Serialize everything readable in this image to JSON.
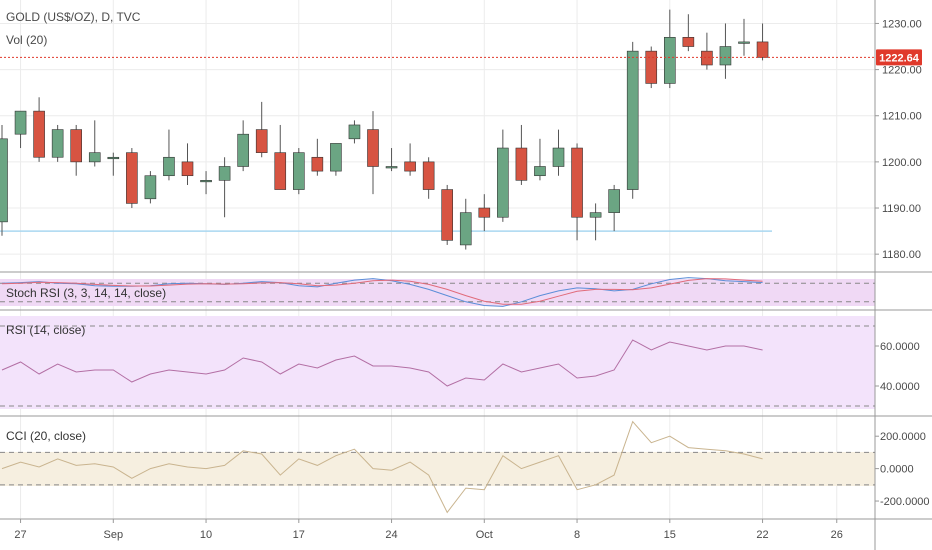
{
  "header": {
    "title": "GOLD (US$/OZ), D, TVC",
    "volume_label": "Vol (20)"
  },
  "current_price": "1222.64",
  "colors": {
    "up": "#6ba583",
    "down": "#d75442",
    "wick": "#555555",
    "current_line": "#e0392b",
    "support_line": "#a9d7f0",
    "stoch_band": "#f0d9f5",
    "rsi_band": "#f3e3fb",
    "rsi_line": "#b36fa4",
    "cci_band": "#f6efe0",
    "cci_line": "#c9b48f",
    "stoch_k": "#5b8ed8",
    "stoch_d": "#e06b7a"
  },
  "chart_data": [
    {
      "type": "candlestick",
      "title": "GOLD (US$/OZ), D, TVC",
      "x_tick_labels": [
        "27",
        "Sep",
        "10",
        "17",
        "24",
        "Oct",
        "8",
        "15",
        "22",
        "26"
      ],
      "y_ticks": [
        "1180.00",
        "1190.00",
        "1200.00",
        "1210.00",
        "1220.00",
        "1230.00"
      ],
      "ylim": [
        1177,
        1234
      ],
      "support_level": 1185,
      "current_price": 1222.64,
      "candles": [
        {
          "date": "Aug 24",
          "open": 1187,
          "high": 1208,
          "low": 1184,
          "close": 1205
        },
        {
          "date": "Aug 27",
          "open": 1206,
          "high": 1211,
          "low": 1203,
          "close": 1211
        },
        {
          "date": "Aug 28",
          "open": 1211,
          "high": 1214,
          "low": 1200,
          "close": 1201
        },
        {
          "date": "Aug 29",
          "open": 1201,
          "high": 1208,
          "low": 1200,
          "close": 1207
        },
        {
          "date": "Aug 30",
          "open": 1207,
          "high": 1208,
          "low": 1197,
          "close": 1200
        },
        {
          "date": "Aug 31",
          "open": 1200,
          "high": 1209,
          "low": 1199,
          "close": 1202
        },
        {
          "date": "Sep 3",
          "open": 1201,
          "high": 1202,
          "low": 1197,
          "close": 1201
        },
        {
          "date": "Sep 4",
          "open": 1202,
          "high": 1203,
          "low": 1190,
          "close": 1191
        },
        {
          "date": "Sep 5",
          "open": 1192,
          "high": 1198,
          "low": 1191,
          "close": 1197
        },
        {
          "date": "Sep 6",
          "open": 1197,
          "high": 1207,
          "low": 1196,
          "close": 1201
        },
        {
          "date": "Sep 7",
          "open": 1200,
          "high": 1204,
          "low": 1195,
          "close": 1197
        },
        {
          "date": "Sep 10",
          "open": 1196,
          "high": 1198,
          "low": 1193,
          "close": 1196
        },
        {
          "date": "Sep 11",
          "open": 1196,
          "high": 1201,
          "low": 1188,
          "close": 1199
        },
        {
          "date": "Sep 12",
          "open": 1199,
          "high": 1209,
          "low": 1198,
          "close": 1206
        },
        {
          "date": "Sep 13",
          "open": 1207,
          "high": 1213,
          "low": 1201,
          "close": 1202
        },
        {
          "date": "Sep 14",
          "open": 1202,
          "high": 1208,
          "low": 1194,
          "close": 1194
        },
        {
          "date": "Sep 17",
          "open": 1194,
          "high": 1203,
          "low": 1193,
          "close": 1202
        },
        {
          "date": "Sep 18",
          "open": 1201,
          "high": 1205,
          "low": 1197,
          "close": 1198
        },
        {
          "date": "Sep 19",
          "open": 1198,
          "high": 1204,
          "low": 1197,
          "close": 1204
        },
        {
          "date": "Sep 20",
          "open": 1205,
          "high": 1209,
          "low": 1204,
          "close": 1208
        },
        {
          "date": "Sep 21",
          "open": 1207,
          "high": 1211,
          "low": 1193,
          "close": 1199
        },
        {
          "date": "Sep 24",
          "open": 1199,
          "high": 1203,
          "low": 1198,
          "close": 1199
        },
        {
          "date": "Sep 25",
          "open": 1200,
          "high": 1204,
          "low": 1197,
          "close": 1198
        },
        {
          "date": "Sep 26",
          "open": 1200,
          "high": 1201,
          "low": 1192,
          "close": 1194
        },
        {
          "date": "Sep 27",
          "open": 1194,
          "high": 1195,
          "low": 1182,
          "close": 1183
        },
        {
          "date": "Sep 28",
          "open": 1182,
          "high": 1192,
          "low": 1181,
          "close": 1189
        },
        {
          "date": "Oct 1",
          "open": 1190,
          "high": 1193,
          "low": 1185,
          "close": 1188
        },
        {
          "date": "Oct 2",
          "open": 1188,
          "high": 1207,
          "low": 1187,
          "close": 1203
        },
        {
          "date": "Oct 3",
          "open": 1203,
          "high": 1208,
          "low": 1195,
          "close": 1196
        },
        {
          "date": "Oct 4",
          "open": 1197,
          "high": 1205,
          "low": 1196,
          "close": 1199
        },
        {
          "date": "Oct 5",
          "open": 1199,
          "high": 1207,
          "low": 1197,
          "close": 1203
        },
        {
          "date": "Oct 8",
          "open": 1203,
          "high": 1204,
          "low": 1183,
          "close": 1188
        },
        {
          "date": "Oct 9",
          "open": 1188,
          "high": 1191,
          "low": 1183,
          "close": 1189
        },
        {
          "date": "Oct 10",
          "open": 1189,
          "high": 1195,
          "low": 1185,
          "close": 1194
        },
        {
          "date": "Oct 11",
          "open": 1194,
          "high": 1226,
          "low": 1192,
          "close": 1224
        },
        {
          "date": "Oct 12",
          "open": 1224,
          "high": 1225,
          "low": 1216,
          "close": 1217
        },
        {
          "date": "Oct 15",
          "open": 1217,
          "high": 1233,
          "low": 1216,
          "close": 1227
        },
        {
          "date": "Oct 16",
          "open": 1227,
          "high": 1232,
          "low": 1224,
          "close": 1225
        },
        {
          "date": "Oct 17",
          "open": 1224,
          "high": 1228,
          "low": 1220,
          "close": 1221
        },
        {
          "date": "Oct 18",
          "open": 1221,
          "high": 1230,
          "low": 1218,
          "close": 1225
        },
        {
          "date": "Oct 19",
          "open": 1226,
          "high": 1231,
          "low": 1223,
          "close": 1226
        },
        {
          "date": "Oct 22",
          "open": 1226,
          "high": 1230,
          "low": 1222,
          "close": 1222.64
        }
      ]
    },
    {
      "type": "line",
      "title": "Stoch RSI (3, 3, 14, 14, close)",
      "ylim": [
        0,
        100
      ],
      "bands": [
        20,
        80
      ],
      "series": [
        {
          "values": [
            80,
            82,
            85,
            80,
            78,
            72,
            70,
            70,
            72,
            78,
            80,
            78,
            76,
            80,
            85,
            82,
            72,
            68,
            80,
            90,
            95,
            88,
            76,
            60,
            40,
            20,
            8,
            5,
            20,
            40,
            55,
            65,
            62,
            55,
            60,
            78,
            92,
            98,
            95,
            88,
            85,
            82
          ]
        },
        {
          "values": [
            78,
            80,
            83,
            82,
            80,
            76,
            73,
            71,
            71,
            74,
            77,
            78,
            77,
            78,
            81,
            82,
            78,
            72,
            74,
            80,
            88,
            90,
            86,
            76,
            60,
            40,
            22,
            12,
            12,
            22,
            38,
            54,
            60,
            60,
            59,
            65,
            77,
            89,
            95,
            94,
            90,
            86
          ]
        }
      ]
    },
    {
      "type": "line",
      "title": "RSI (14, close)",
      "y_ticks": [
        "40.0000",
        "60.0000"
      ],
      "ylim": [
        28,
        75
      ],
      "bands": [
        30,
        70
      ],
      "series": [
        {
          "values": [
            48,
            52,
            46,
            51,
            47,
            48,
            48,
            42,
            46,
            48,
            47,
            46,
            48,
            54,
            52,
            46,
            51,
            49,
            53,
            55,
            50,
            50,
            49,
            47,
            40,
            44,
            43,
            51,
            47,
            49,
            51,
            44,
            45,
            48,
            63,
            58,
            62,
            60,
            58,
            60,
            60,
            58
          ]
        }
      ]
    },
    {
      "type": "line",
      "title": "CCI (20, close)",
      "y_ticks": [
        "-200.0000",
        "0.0000",
        "200.0000"
      ],
      "ylim": [
        -280,
        300
      ],
      "bands": [
        -100,
        100
      ],
      "series": [
        {
          "values": [
            0,
            40,
            10,
            60,
            20,
            30,
            10,
            -60,
            0,
            30,
            10,
            0,
            20,
            110,
            90,
            -40,
            60,
            20,
            80,
            120,
            0,
            -10,
            40,
            -40,
            -270,
            -120,
            -130,
            80,
            0,
            40,
            80,
            -130,
            -100,
            -40,
            290,
            160,
            200,
            130,
            120,
            110,
            90,
            60
          ]
        }
      ]
    }
  ]
}
